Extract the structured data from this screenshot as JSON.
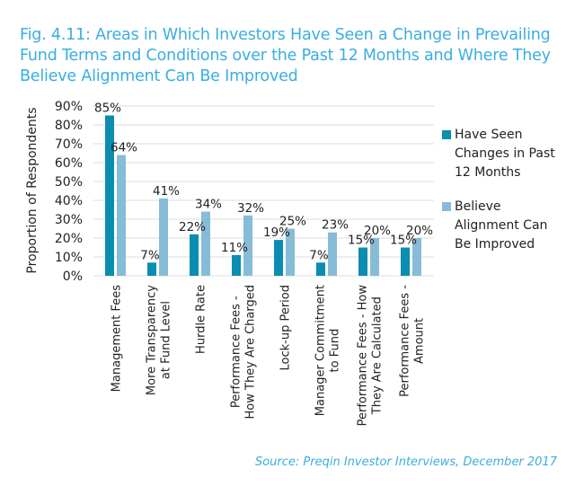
{
  "chart_data": {
    "type": "bar",
    "title": "Fig. 4.11: Areas in Which Investors Have Seen a Change in Prevailing Fund Terms and Conditions over the Past 12 Months and Where They Believe Alignment Can Be Improved",
    "xlabel": "",
    "ylabel": "Proportion of Respondents",
    "ylim": [
      0,
      90
    ],
    "yticks": [
      "0%",
      "10%",
      "20%",
      "30%",
      "40%",
      "50%",
      "60%",
      "70%",
      "80%",
      "90%"
    ],
    "grid": true,
    "legend_position": "right",
    "categories": [
      [
        "Management Fees"
      ],
      [
        "More Transparency",
        "at Fund Level"
      ],
      [
        "Hurdle Rate"
      ],
      [
        "Performance Fees -",
        "How They Are Charged"
      ],
      [
        "Lock-up Period"
      ],
      [
        "Manager Commitment",
        "to Fund"
      ],
      [
        "Performance Fees - How",
        "They Are Calculated"
      ],
      [
        "Performance Fees -",
        "Amount"
      ]
    ],
    "series": [
      {
        "name": "Have Seen Changes in Past 12 Months",
        "legend_lines": [
          "Have Seen",
          "Changes in Past",
          "12 Months"
        ],
        "color": "#0a8db0",
        "values": [
          85,
          7,
          22,
          11,
          19,
          7,
          15,
          15
        ]
      },
      {
        "name": "Believe Alignment Can Be Improved",
        "legend_lines": [
          "Believe",
          "Alignment Can",
          "Be Improved"
        ],
        "color": "#87bcd6",
        "values": [
          64,
          41,
          34,
          32,
          25,
          23,
          20,
          20
        ]
      }
    ],
    "source": "Source: Preqin Investor Interviews, December 2017"
  }
}
